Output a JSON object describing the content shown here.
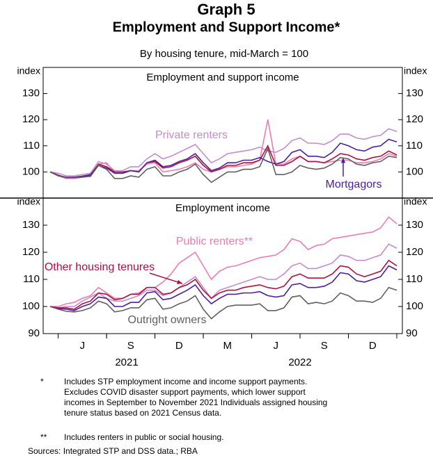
{
  "title": "Graph 5",
  "subtitle": "Employment and Support Income*",
  "note": "By housing tenure, mid-March = 100",
  "chart_data": [
    {
      "type": "line",
      "title": "Employment and support income",
      "ylabel": "index",
      "y2label": "index",
      "ylim": [
        90,
        140
      ],
      "yticks": [
        100,
        110,
        120,
        130
      ],
      "y2lim": [
        90,
        140
      ],
      "y2ticks": [
        100,
        110,
        120,
        130
      ],
      "series": [
        {
          "name": "Private renters",
          "color": "#c48ccc",
          "values": [
            100,
            99.5,
            98.5,
            98.5,
            99,
            99.5,
            104,
            103,
            100.5,
            100.5,
            102,
            102,
            105,
            107,
            105,
            106,
            107.5,
            109,
            110.5,
            107,
            103.5,
            105,
            107,
            107.5,
            108,
            108.5,
            109.5,
            108,
            107.5,
            109,
            112,
            113,
            111,
            111,
            110.5,
            112,
            114.5,
            114.5,
            113,
            112.5,
            113.5,
            114,
            116.5,
            115.5
          ]
        },
        {
          "color": "#f07ab4",
          "values": [
            100,
            98.5,
            97.5,
            97.5,
            98,
            98.5,
            103,
            103.5,
            99.5,
            99.5,
            100.5,
            100.5,
            103,
            103.5,
            100,
            100.5,
            101,
            102,
            103.5,
            101,
            100,
            101,
            102,
            102,
            102.5,
            103,
            104.5,
            120,
            103,
            103,
            105,
            106,
            104,
            104,
            103.5,
            104,
            104.5,
            104.5,
            103.5,
            103.5,
            104,
            105,
            107,
            106
          ]
        },
        {
          "color": "#b0103c",
          "values": [
            100,
            98.8,
            97.8,
            98,
            98.2,
            98.8,
            103,
            102,
            100,
            100,
            100.5,
            100,
            103.5,
            104,
            101.5,
            102,
            103.5,
            104.5,
            106,
            102.5,
            100,
            101,
            102.5,
            102.5,
            103.5,
            103.5,
            104.5,
            110,
            102.5,
            102.5,
            104,
            106,
            104,
            104,
            103.5,
            105,
            107,
            106.5,
            105,
            104.5,
            105.5,
            106,
            108,
            106.5
          ]
        },
        {
          "name": "Mortgagors",
          "color": "#4b1e9e",
          "values": [
            100,
            98.6,
            98,
            98,
            98.4,
            99,
            102.5,
            101.5,
            99.5,
            99.5,
            100.5,
            100,
            103.5,
            104.5,
            102,
            102.5,
            104,
            105,
            107,
            103.5,
            100.5,
            101.5,
            103.5,
            103.5,
            104.5,
            104.5,
            105.5,
            104,
            103,
            104,
            107.5,
            108.5,
            106,
            106,
            105.5,
            107.5,
            111,
            110,
            108.5,
            108,
            109.5,
            110,
            112.5,
            111.5
          ]
        },
        {
          "color": "#606060",
          "values": [
            100,
            98.5,
            97.8,
            97.8,
            98,
            98.3,
            102.5,
            101,
            97.5,
            97.5,
            98.5,
            98,
            101,
            102,
            98.5,
            98.5,
            100,
            101,
            103,
            99,
            96,
            98,
            100,
            100,
            101,
            101,
            102,
            109,
            99,
            99,
            100,
            102.5,
            101.5,
            101,
            101.5,
            103,
            105.5,
            105,
            103,
            102.5,
            103.5,
            104,
            106,
            105.5
          ]
        }
      ]
    },
    {
      "type": "line",
      "title": "Employment income",
      "ylabel": "index",
      "y2label": "index",
      "ylim": [
        90,
        140
      ],
      "yticks": [
        90,
        100,
        110,
        120,
        130
      ],
      "y2lim": [
        90,
        140
      ],
      "y2ticks": [
        90,
        100,
        110,
        120,
        130
      ],
      "categories": [
        null,
        null,
        null,
        null,
        "J",
        null,
        null,
        null,
        null,
        null,
        "S",
        null,
        null,
        null,
        null,
        null,
        "D",
        null,
        null,
        null,
        null,
        null,
        "M",
        null,
        null,
        null,
        null,
        null,
        "J",
        null,
        null,
        null,
        null,
        null,
        "S",
        null,
        null,
        null,
        null,
        null,
        "D",
        null,
        null,
        null
      ],
      "x_group_labels": [
        "2021",
        "2022"
      ],
      "series": [
        {
          "name": "Public renters**",
          "color": "#f07ab4",
          "values": [
            100,
            100,
            101,
            101.5,
            103,
            104,
            107,
            105,
            103,
            103,
            104.5,
            105,
            107,
            107,
            109,
            112,
            116,
            118,
            120,
            115,
            110,
            113,
            114.5,
            115,
            116,
            117,
            118,
            118.5,
            119,
            121,
            125,
            124,
            121,
            122.5,
            123,
            125,
            125.5,
            126,
            126.5,
            127,
            127.5,
            129,
            133,
            130.5
          ]
        },
        {
          "color": "#c48ccc",
          "values": [
            100,
            99.5,
            100,
            100,
            102,
            103.5,
            105,
            103,
            102,
            102,
            103,
            104,
            106,
            106,
            104,
            105,
            107,
            109,
            111,
            107,
            103,
            106,
            107,
            108,
            109,
            110,
            111,
            110,
            110,
            112,
            115,
            116,
            114,
            114,
            115,
            116,
            119,
            118.5,
            117,
            117,
            118,
            119,
            123,
            121.5
          ]
        },
        {
          "name": "Other housing tenures",
          "color": "#b0103c",
          "values": [
            100,
            99.5,
            99.5,
            99,
            101,
            102,
            105,
            104.5,
            102.5,
            103,
            104.5,
            104.5,
            107,
            107,
            104.5,
            105,
            107,
            108,
            110,
            106,
            103,
            105,
            106,
            106,
            107,
            107.5,
            108,
            107,
            106.5,
            107.5,
            111,
            112,
            110.5,
            110.5,
            110.5,
            112,
            115,
            114.5,
            112,
            111,
            112,
            113,
            117,
            115
          ]
        },
        {
          "color": "#4b1e9e",
          "values": [
            100,
            99.2,
            99,
            98.5,
            100,
            101,
            103.5,
            103,
            100,
            100,
            101.5,
            101.5,
            105,
            105.5,
            102.5,
            103,
            104.5,
            106,
            108,
            104,
            101,
            103,
            104.5,
            104.5,
            105,
            105,
            105.5,
            104,
            103.5,
            104,
            108,
            108.5,
            107,
            107,
            107.5,
            109,
            112.5,
            112,
            109.5,
            109,
            110,
            111,
            115,
            113.5
          ]
        },
        {
          "name": "Outright owners",
          "color": "#606060",
          "values": [
            100,
            99,
            98.2,
            98,
            98.5,
            99.5,
            102,
            101,
            98,
            98.5,
            99.5,
            99.5,
            102.5,
            103,
            99,
            99.5,
            101,
            102,
            104,
            99,
            95.5,
            98,
            100,
            100.5,
            100.5,
            100.5,
            101,
            98.5,
            98.5,
            99.5,
            103.5,
            104,
            101,
            101.5,
            101,
            102,
            105,
            104,
            102,
            102,
            101.5,
            103,
            107,
            106
          ]
        }
      ]
    }
  ],
  "footnotes": [
    {
      "marker": "*",
      "lines": [
        "Includes STP employment income and income support payments.",
        "Excludes COVID disaster support payments, which lower support",
        "incomes in September to November 2021  Individuals assigned housing",
        "tenure status based on 2021 Census data."
      ]
    },
    {
      "marker": "**",
      "lines": [
        "Includes renters in public or social housing."
      ]
    }
  ],
  "sources": "Sources: Integrated STP and DSS data.; RBA"
}
